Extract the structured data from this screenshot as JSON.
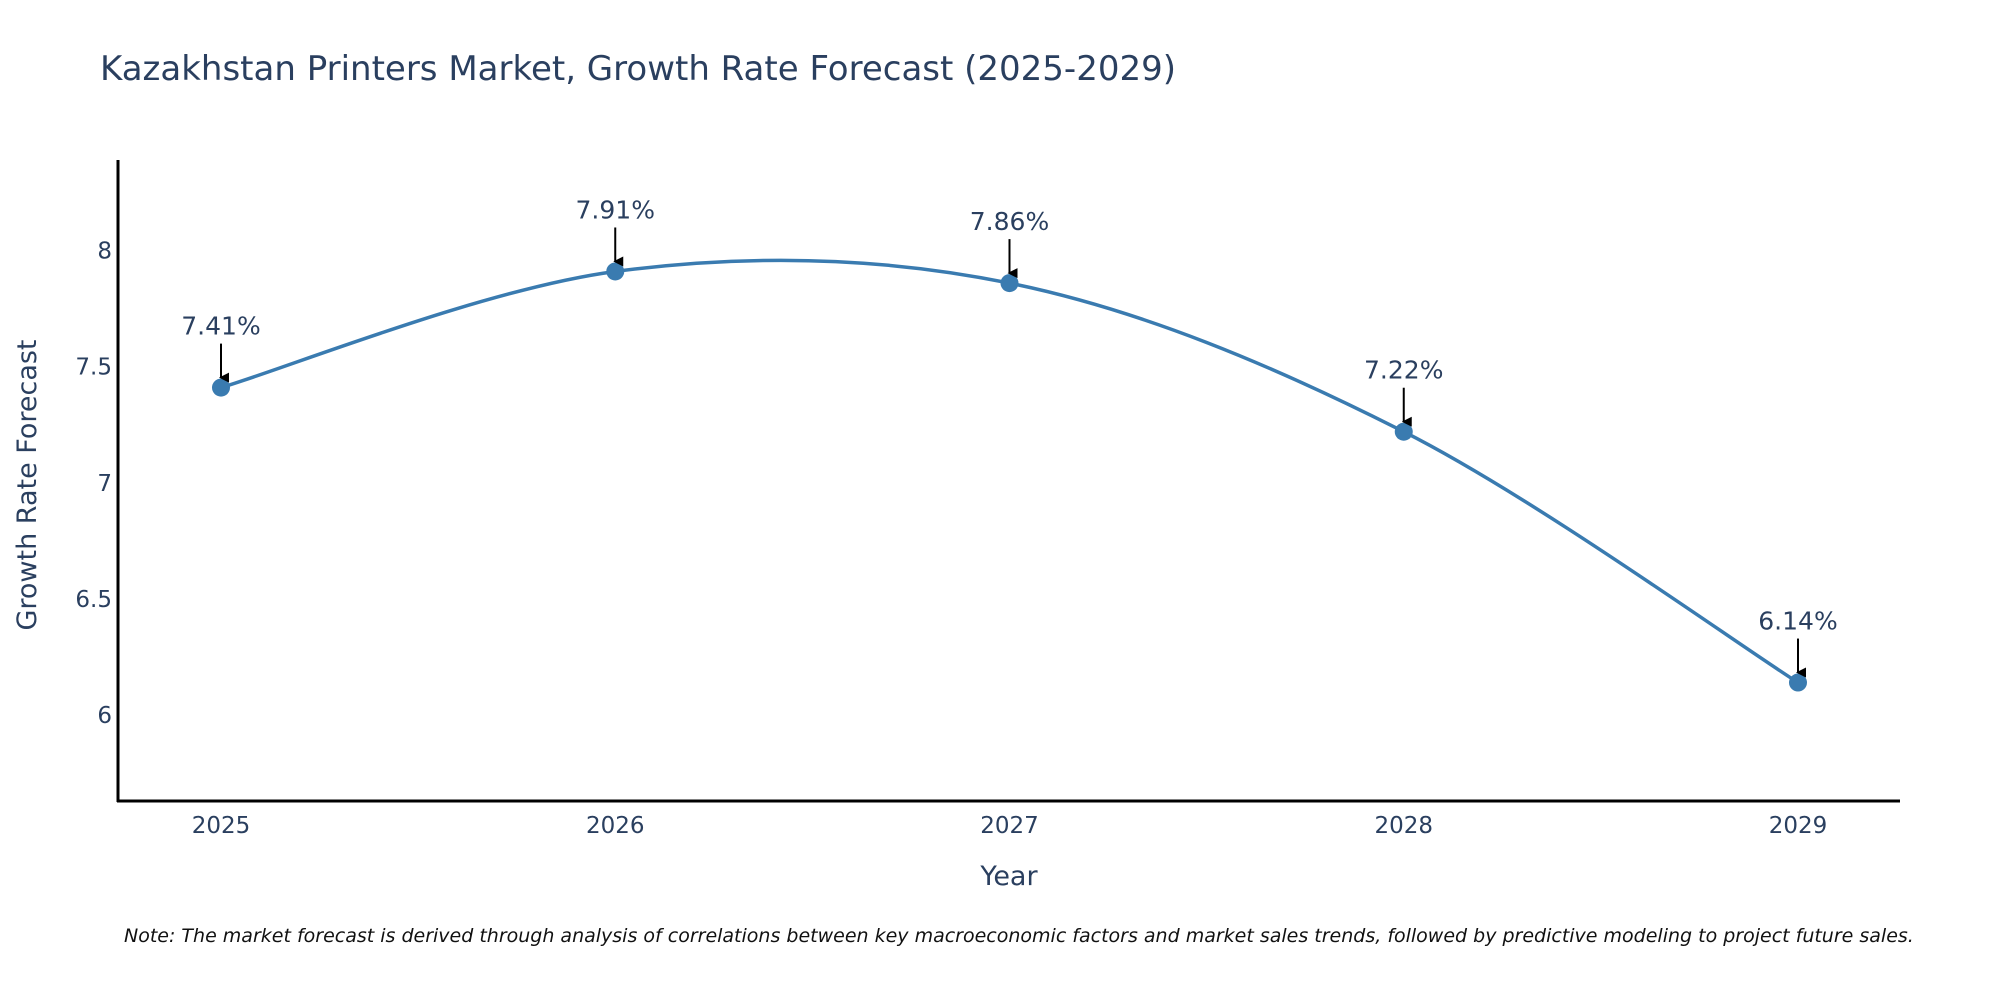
{
  "chart_data": {
    "type": "line",
    "title": "Kazakhstan Printers Market, Growth Rate Forecast (2025-2029)",
    "xlabel": "Year",
    "ylabel": "Growth Rate Forecast",
    "categories": [
      "2025",
      "2026",
      "2027",
      "2028",
      "2029"
    ],
    "values": [
      7.41,
      7.91,
      7.86,
      7.22,
      6.14
    ],
    "data_labels": [
      "7.41%",
      "7.91%",
      "7.86%",
      "7.22%",
      "6.14%"
    ],
    "ylim": [
      5.63,
      8.39
    ],
    "yticks": [
      6,
      6.5,
      7,
      7.5,
      8
    ],
    "ytick_labels": [
      "6",
      "6.5",
      "7",
      "7.5",
      "8"
    ],
    "line_shape": "spline",
    "grid": false,
    "colors": {
      "line": "#3a7bb0",
      "marker": "#3a7bb0",
      "axis": "#000000",
      "arrow": "#000000",
      "text": "#2a3f5f"
    },
    "note": "Note: The market forecast is derived through analysis of correlations between key macroeconomic factors and market sales trends, followed by predictive modeling to project future sales."
  }
}
